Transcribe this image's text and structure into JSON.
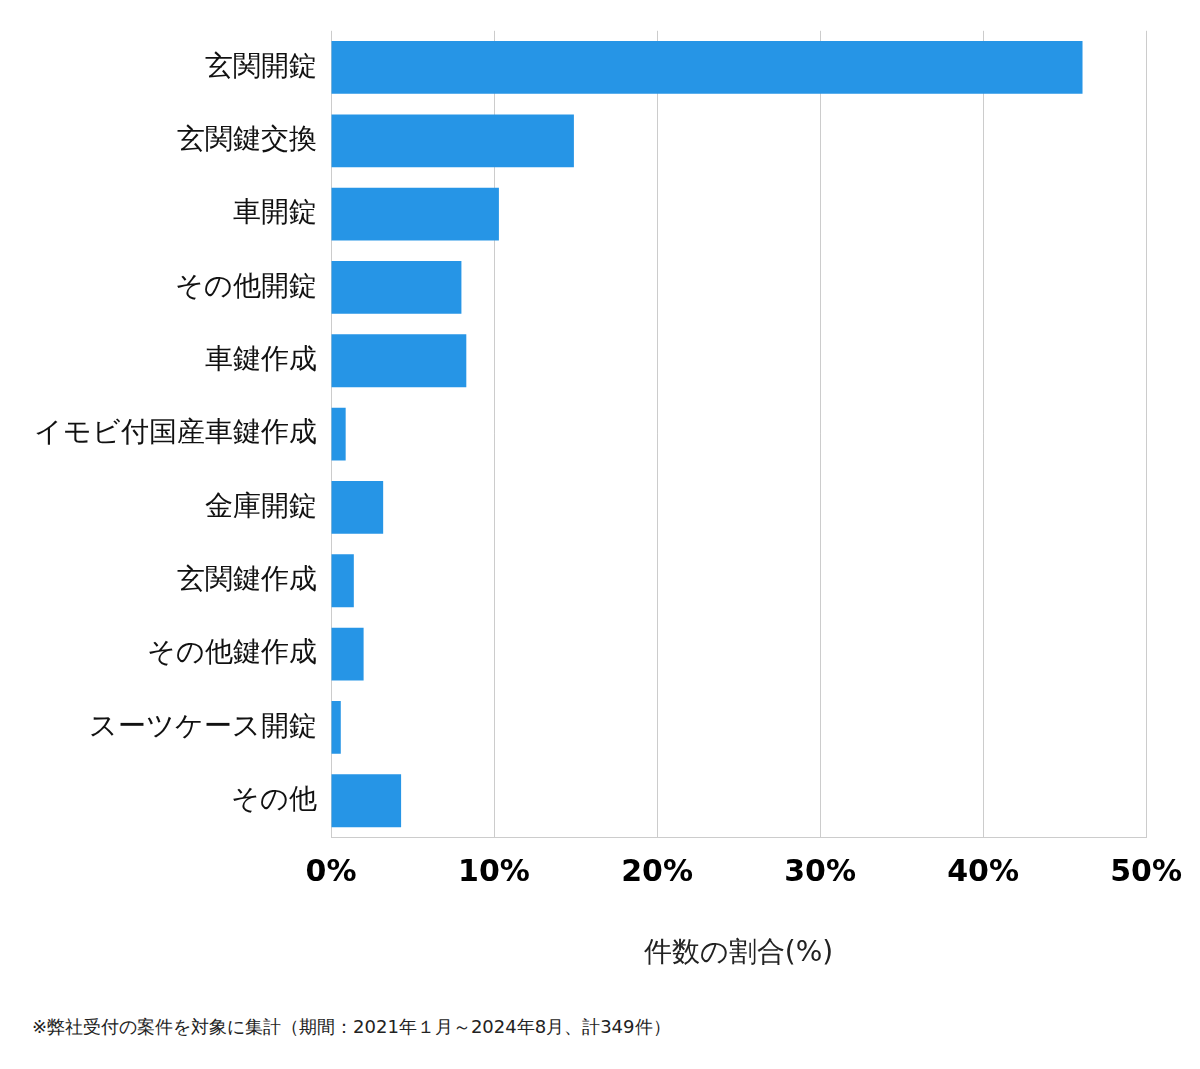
{
  "chart_data": {
    "type": "bar",
    "orientation": "horizontal",
    "categories": [
      "玄関開錠",
      "玄関鍵交換",
      "車開錠",
      "その他開錠",
      "車鍵作成",
      "イモビ付国産車鍵作成",
      "金庫開錠",
      "玄関鍵作成",
      "その他鍵作成",
      "スーツケース開錠",
      "その他"
    ],
    "values": [
      46.1,
      14.9,
      10.3,
      8.0,
      8.3,
      0.9,
      3.2,
      1.4,
      2.0,
      0.6,
      4.3
    ],
    "color": "#2695e6",
    "x_label": "件数の割合(%)",
    "xlim": [
      0,
      50
    ],
    "xticks": [
      {
        "value": 0,
        "label": "0%"
      },
      {
        "value": 10,
        "label": "10%"
      },
      {
        "value": 20,
        "label": "20%"
      },
      {
        "value": 30,
        "label": "30%"
      },
      {
        "value": 40,
        "label": "40%"
      },
      {
        "value": 50,
        "label": "50%"
      }
    ],
    "grid": true,
    "footnote": "※弊社受付の案件を対象に集計（期間：2021年１月～2024年8月、計349件）"
  }
}
